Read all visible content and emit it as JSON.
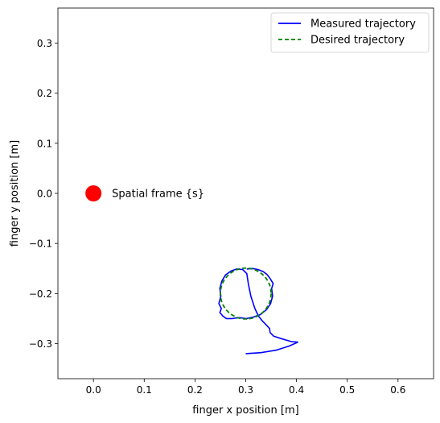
{
  "chart_data": {
    "type": "line",
    "xlabel": "finger x position [m]",
    "ylabel": "finger y position [m]",
    "xlim": [
      -0.07,
      0.67
    ],
    "ylim": [
      -0.37,
      0.37
    ],
    "xticks": [
      0.0,
      0.1,
      0.2,
      0.3,
      0.4,
      0.5,
      0.6
    ],
    "xtick_labels": [
      "0.0",
      "0.1",
      "0.2",
      "0.3",
      "0.4",
      "0.5",
      "0.6"
    ],
    "yticks": [
      -0.3,
      -0.2,
      -0.1,
      0.0,
      0.1,
      0.2,
      0.3
    ],
    "ytick_labels": [
      "−0.3",
      "−0.2",
      "−0.1",
      "0.0",
      "0.1",
      "0.2",
      "0.3"
    ],
    "grid": false,
    "legend": {
      "position": "upper-right"
    },
    "series": [
      {
        "name": "Measured trajectory",
        "color": "#0000ff",
        "style": "solid",
        "x": [
          0.3,
          0.33,
          0.36,
          0.385,
          0.403,
          0.39,
          0.37,
          0.355,
          0.348,
          0.347,
          0.34,
          0.333,
          0.325,
          0.318,
          0.31,
          0.305,
          0.302,
          0.294,
          0.282,
          0.271,
          0.26,
          0.253,
          0.249,
          0.251,
          0.247,
          0.252,
          0.249,
          0.255,
          0.262,
          0.273,
          0.287,
          0.301,
          0.315,
          0.329,
          0.341,
          0.349,
          0.353,
          0.351,
          0.354,
          0.348,
          0.342,
          0.334,
          0.324,
          0.313,
          0.302
        ],
        "y": [
          -0.32,
          -0.318,
          -0.313,
          -0.305,
          -0.297,
          -0.296,
          -0.29,
          -0.285,
          -0.278,
          -0.27,
          -0.262,
          -0.255,
          -0.245,
          -0.23,
          -0.205,
          -0.18,
          -0.16,
          -0.152,
          -0.151,
          -0.155,
          -0.163,
          -0.175,
          -0.19,
          -0.205,
          -0.22,
          -0.23,
          -0.238,
          -0.245,
          -0.25,
          -0.25,
          -0.248,
          -0.25,
          -0.247,
          -0.242,
          -0.232,
          -0.22,
          -0.205,
          -0.19,
          -0.18,
          -0.17,
          -0.162,
          -0.156,
          -0.152,
          -0.15,
          -0.151
        ]
      },
      {
        "name": "Desired trajectory",
        "color": "#008000",
        "style": "dashed",
        "shape": "circle",
        "center": [
          0.3,
          -0.2
        ],
        "radius": 0.05
      }
    ],
    "markers": [
      {
        "label": "Spatial frame {s}",
        "x": 0.0,
        "y": 0.0,
        "color": "#ff0000"
      }
    ]
  }
}
